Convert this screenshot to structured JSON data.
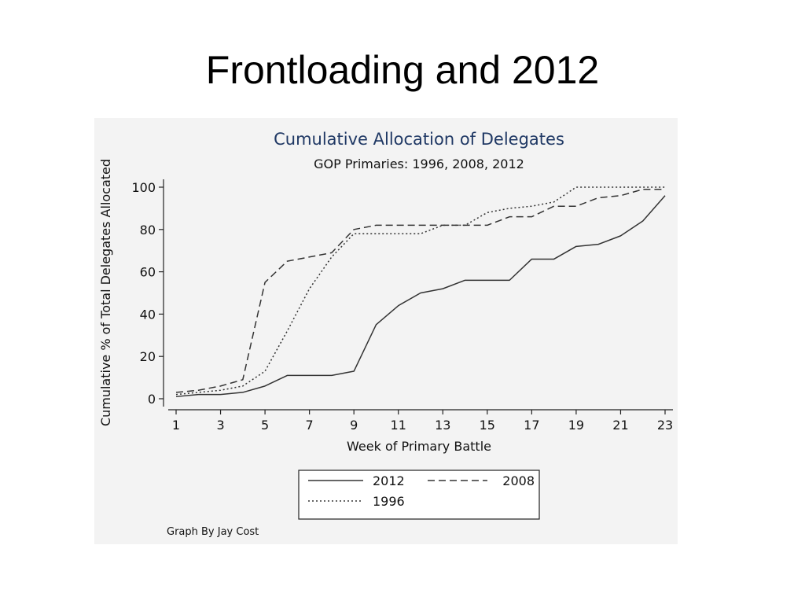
{
  "slide": {
    "title": "Frontloading and 2012"
  },
  "chart_data": {
    "type": "line",
    "title": "Cumulative Allocation of Delegates",
    "subtitle": "GOP Primaries: 1996, 2008, 2012",
    "xlabel": "Week of Primary Battle",
    "ylabel": "Cumulative % of Total Delegates Allocated",
    "xlim": [
      1,
      23
    ],
    "ylim": [
      0,
      100
    ],
    "x_ticks": [
      1,
      3,
      5,
      7,
      9,
      11,
      13,
      15,
      17,
      19,
      21,
      23
    ],
    "y_ticks": [
      0,
      20,
      40,
      60,
      80,
      100
    ],
    "grid": false,
    "legend_position": "bottom",
    "x": [
      1,
      2,
      3,
      4,
      5,
      6,
      7,
      8,
      9,
      10,
      11,
      12,
      13,
      14,
      15,
      16,
      17,
      18,
      19,
      20,
      21,
      22,
      23
    ],
    "series": [
      {
        "name": "2012",
        "style": "solid",
        "values": [
          1,
          2,
          2,
          3,
          6,
          11,
          11,
          11,
          13,
          35,
          44,
          50,
          52,
          56,
          56,
          56,
          66,
          66,
          72,
          73,
          77,
          84,
          96
        ]
      },
      {
        "name": "2008",
        "style": "dashed",
        "values": [
          3,
          4,
          6,
          9,
          55,
          65,
          67,
          69,
          80,
          82,
          82,
          82,
          82,
          82,
          82,
          86,
          86,
          91,
          91,
          95,
          96,
          99,
          99
        ]
      },
      {
        "name": "1996",
        "style": "dotted",
        "values": [
          2,
          3,
          4,
          6,
          13,
          32,
          52,
          67,
          78,
          78,
          78,
          78,
          82,
          82,
          88,
          90,
          91,
          93,
          100,
          100,
          100,
          100,
          100
        ]
      }
    ],
    "line_color": "#333333",
    "title_color": "#1f3864",
    "panel_color": "#f3f3f3",
    "credit": "Graph By Jay Cost"
  }
}
